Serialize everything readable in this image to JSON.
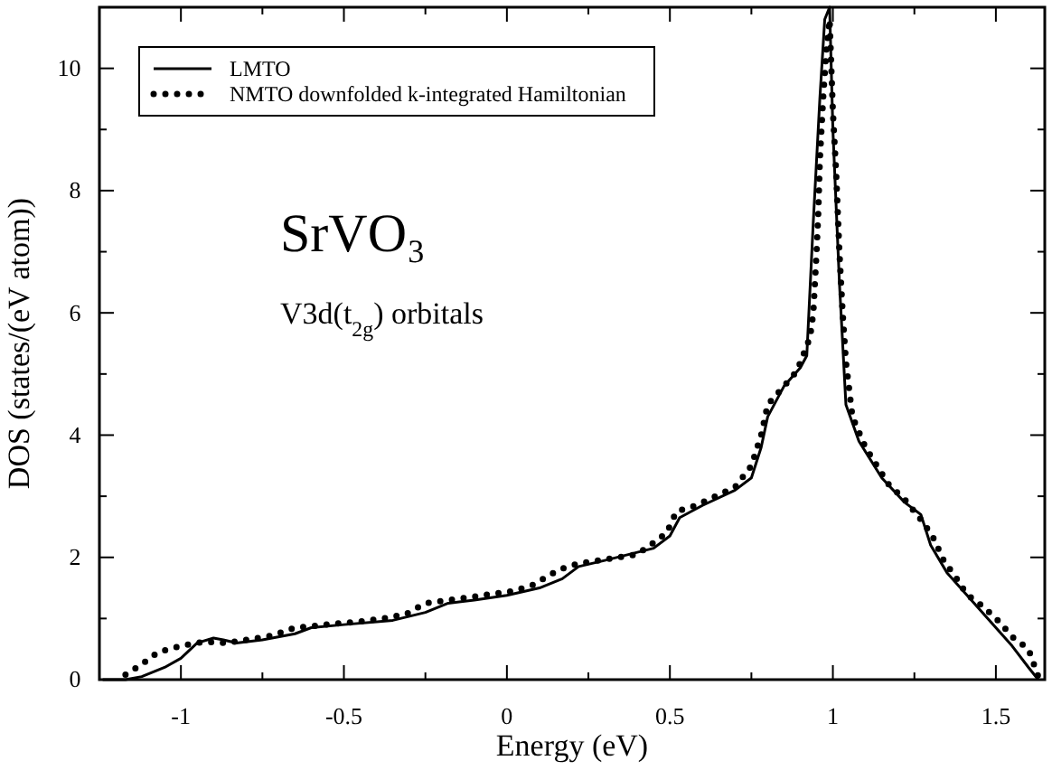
{
  "chart_data": {
    "type": "line",
    "xlabel": "Energy (eV)",
    "ylabel": "DOS (states/(eV atom))",
    "xlim": [
      -1.25,
      1.65
    ],
    "ylim": [
      0,
      11
    ],
    "xticks": [
      -1,
      {
        "value": -0.75,
        "label": null
      },
      -0.5,
      {
        "value": -0.25,
        "label": null
      },
      0,
      {
        "value": 0.25,
        "label": null
      },
      0.5,
      {
        "value": 0.75,
        "label": null
      },
      1,
      {
        "value": 1.25,
        "label": null
      },
      1.5
    ],
    "yticks": [
      0,
      {
        "value": 1,
        "label": null
      },
      2,
      {
        "value": 3,
        "label": null
      },
      4,
      {
        "value": 5,
        "label": null
      },
      6,
      {
        "value": 7,
        "label": null
      },
      8,
      {
        "value": 9,
        "label": null
      },
      10
    ],
    "legend": "top left",
    "grid": false,
    "annotations": [
      "SrVO₃",
      "V3d(t$_{2g}$) orbitals"
    ],
    "series": [
      {
        "name": "LMTO",
        "color": "#000000",
        "line_style": "solid",
        "x": [
          -1.24,
          -1.17,
          -1.12,
          -1.05,
          -1.0,
          -0.95,
          -0.9,
          -0.87,
          -0.83,
          -0.75,
          -0.65,
          -0.6,
          -0.5,
          -0.35,
          -0.25,
          -0.18,
          -0.1,
          0,
          0.1,
          0.17,
          0.22,
          0.3,
          0.45,
          0.5,
          0.53,
          0.6,
          0.7,
          0.75,
          0.78,
          0.8,
          0.85,
          0.9,
          0.92,
          0.94,
          0.96,
          0.975,
          0.99,
          1.0,
          1.02,
          1.04,
          1.08,
          1.15,
          1.22,
          1.27,
          1.3,
          1.35,
          1.45,
          1.55,
          1.6,
          1.63
        ],
        "values": [
          0,
          0,
          0.05,
          0.2,
          0.35,
          0.6,
          0.68,
          0.65,
          0.6,
          0.65,
          0.75,
          0.85,
          0.9,
          0.97,
          1.1,
          1.25,
          1.3,
          1.38,
          1.5,
          1.65,
          1.85,
          1.95,
          2.15,
          2.35,
          2.65,
          2.85,
          3.1,
          3.3,
          3.8,
          4.3,
          4.8,
          5.1,
          5.3,
          7.5,
          9.5,
          10.8,
          11,
          9.0,
          6.5,
          4.5,
          3.9,
          3.3,
          2.9,
          2.7,
          2.2,
          1.75,
          1.15,
          0.55,
          0.2,
          0
        ]
      },
      {
        "name": "NMTO downfolded k-integrated Hamiltonian",
        "color": "#000000",
        "line_style": "dotted",
        "x": [
          -1.17,
          -1.12,
          -1.07,
          -1.0,
          -0.93,
          -0.86,
          -0.8,
          -0.72,
          -0.65,
          -0.59,
          -0.52,
          -0.45,
          -0.38,
          -0.31,
          -0.25,
          -0.18,
          -0.11,
          -0.05,
          0.02,
          0.08,
          0.16,
          0.22,
          0.28,
          0.34,
          0.4,
          0.44,
          0.49,
          0.52,
          0.58,
          0.64,
          0.7,
          0.75,
          0.78,
          0.8,
          0.85,
          0.89,
          0.93,
          0.94,
          0.945,
          0.95,
          0.955,
          0.96,
          0.97,
          0.98,
          0.99,
          1.0,
          1.01,
          1.02,
          1.03,
          1.04,
          1.06,
          1.1,
          1.17,
          1.22,
          1.28,
          1.31,
          1.34,
          1.38,
          1.41,
          1.46,
          1.51,
          1.55,
          1.6,
          1.63
        ],
        "values": [
          0.08,
          0.25,
          0.45,
          0.55,
          0.62,
          0.6,
          0.65,
          0.72,
          0.85,
          0.88,
          0.92,
          0.95,
          1.0,
          1.07,
          1.25,
          1.3,
          1.35,
          1.4,
          1.45,
          1.55,
          1.8,
          1.9,
          1.95,
          2.0,
          2.05,
          2.2,
          2.4,
          2.75,
          2.85,
          3.0,
          3.15,
          3.5,
          4.0,
          4.5,
          4.8,
          5.05,
          5.6,
          6.0,
          6.5,
          7.0,
          7.6,
          8.5,
          9.5,
          10.3,
          10.8,
          9.3,
          8.3,
          7.0,
          6.0,
          5.2,
          4.3,
          3.8,
          3.2,
          2.95,
          2.55,
          2.3,
          1.95,
          1.65,
          1.4,
          1.2,
          0.95,
          0.7,
          0.5,
          0.05
        ]
      }
    ]
  }
}
